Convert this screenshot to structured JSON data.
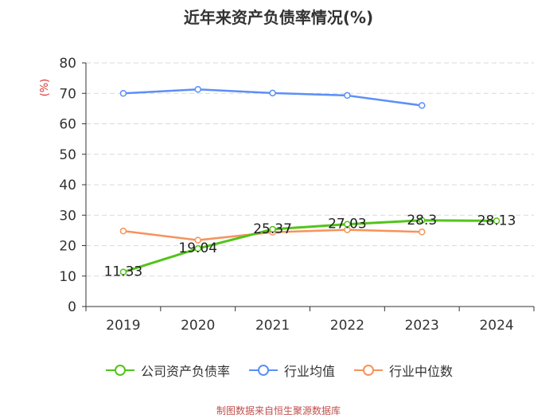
{
  "chart_data": {
    "type": "line",
    "title": "近年来资产负债率情况(%)",
    "ylabel": "(%)",
    "categories": [
      "2019",
      "2020",
      "2021",
      "2022",
      "2023",
      "2024"
    ],
    "ylim": [
      0,
      80
    ],
    "yticks": [
      0,
      10,
      20,
      30,
      40,
      50,
      60,
      70,
      80
    ],
    "grid": true,
    "legend_position": "bottom",
    "series": [
      {
        "name": "公司资产负债率",
        "color": "#52c41a",
        "values": [
          11.33,
          19.04,
          25.37,
          27.03,
          28.3,
          28.13
        ],
        "labels": [
          "11.33",
          "19.04",
          "25.37",
          "27.03",
          "28.3",
          "28.13"
        ]
      },
      {
        "name": "行业均值",
        "color": "#5b8ff9",
        "values": [
          70.0,
          71.3,
          70.1,
          69.3,
          66.0,
          null
        ]
      },
      {
        "name": "行业中位数",
        "color": "#f6935b",
        "values": [
          24.8,
          21.8,
          24.4,
          25.2,
          24.5,
          null
        ]
      }
    ]
  },
  "source": "制图数据来自恒生聚源数据库"
}
